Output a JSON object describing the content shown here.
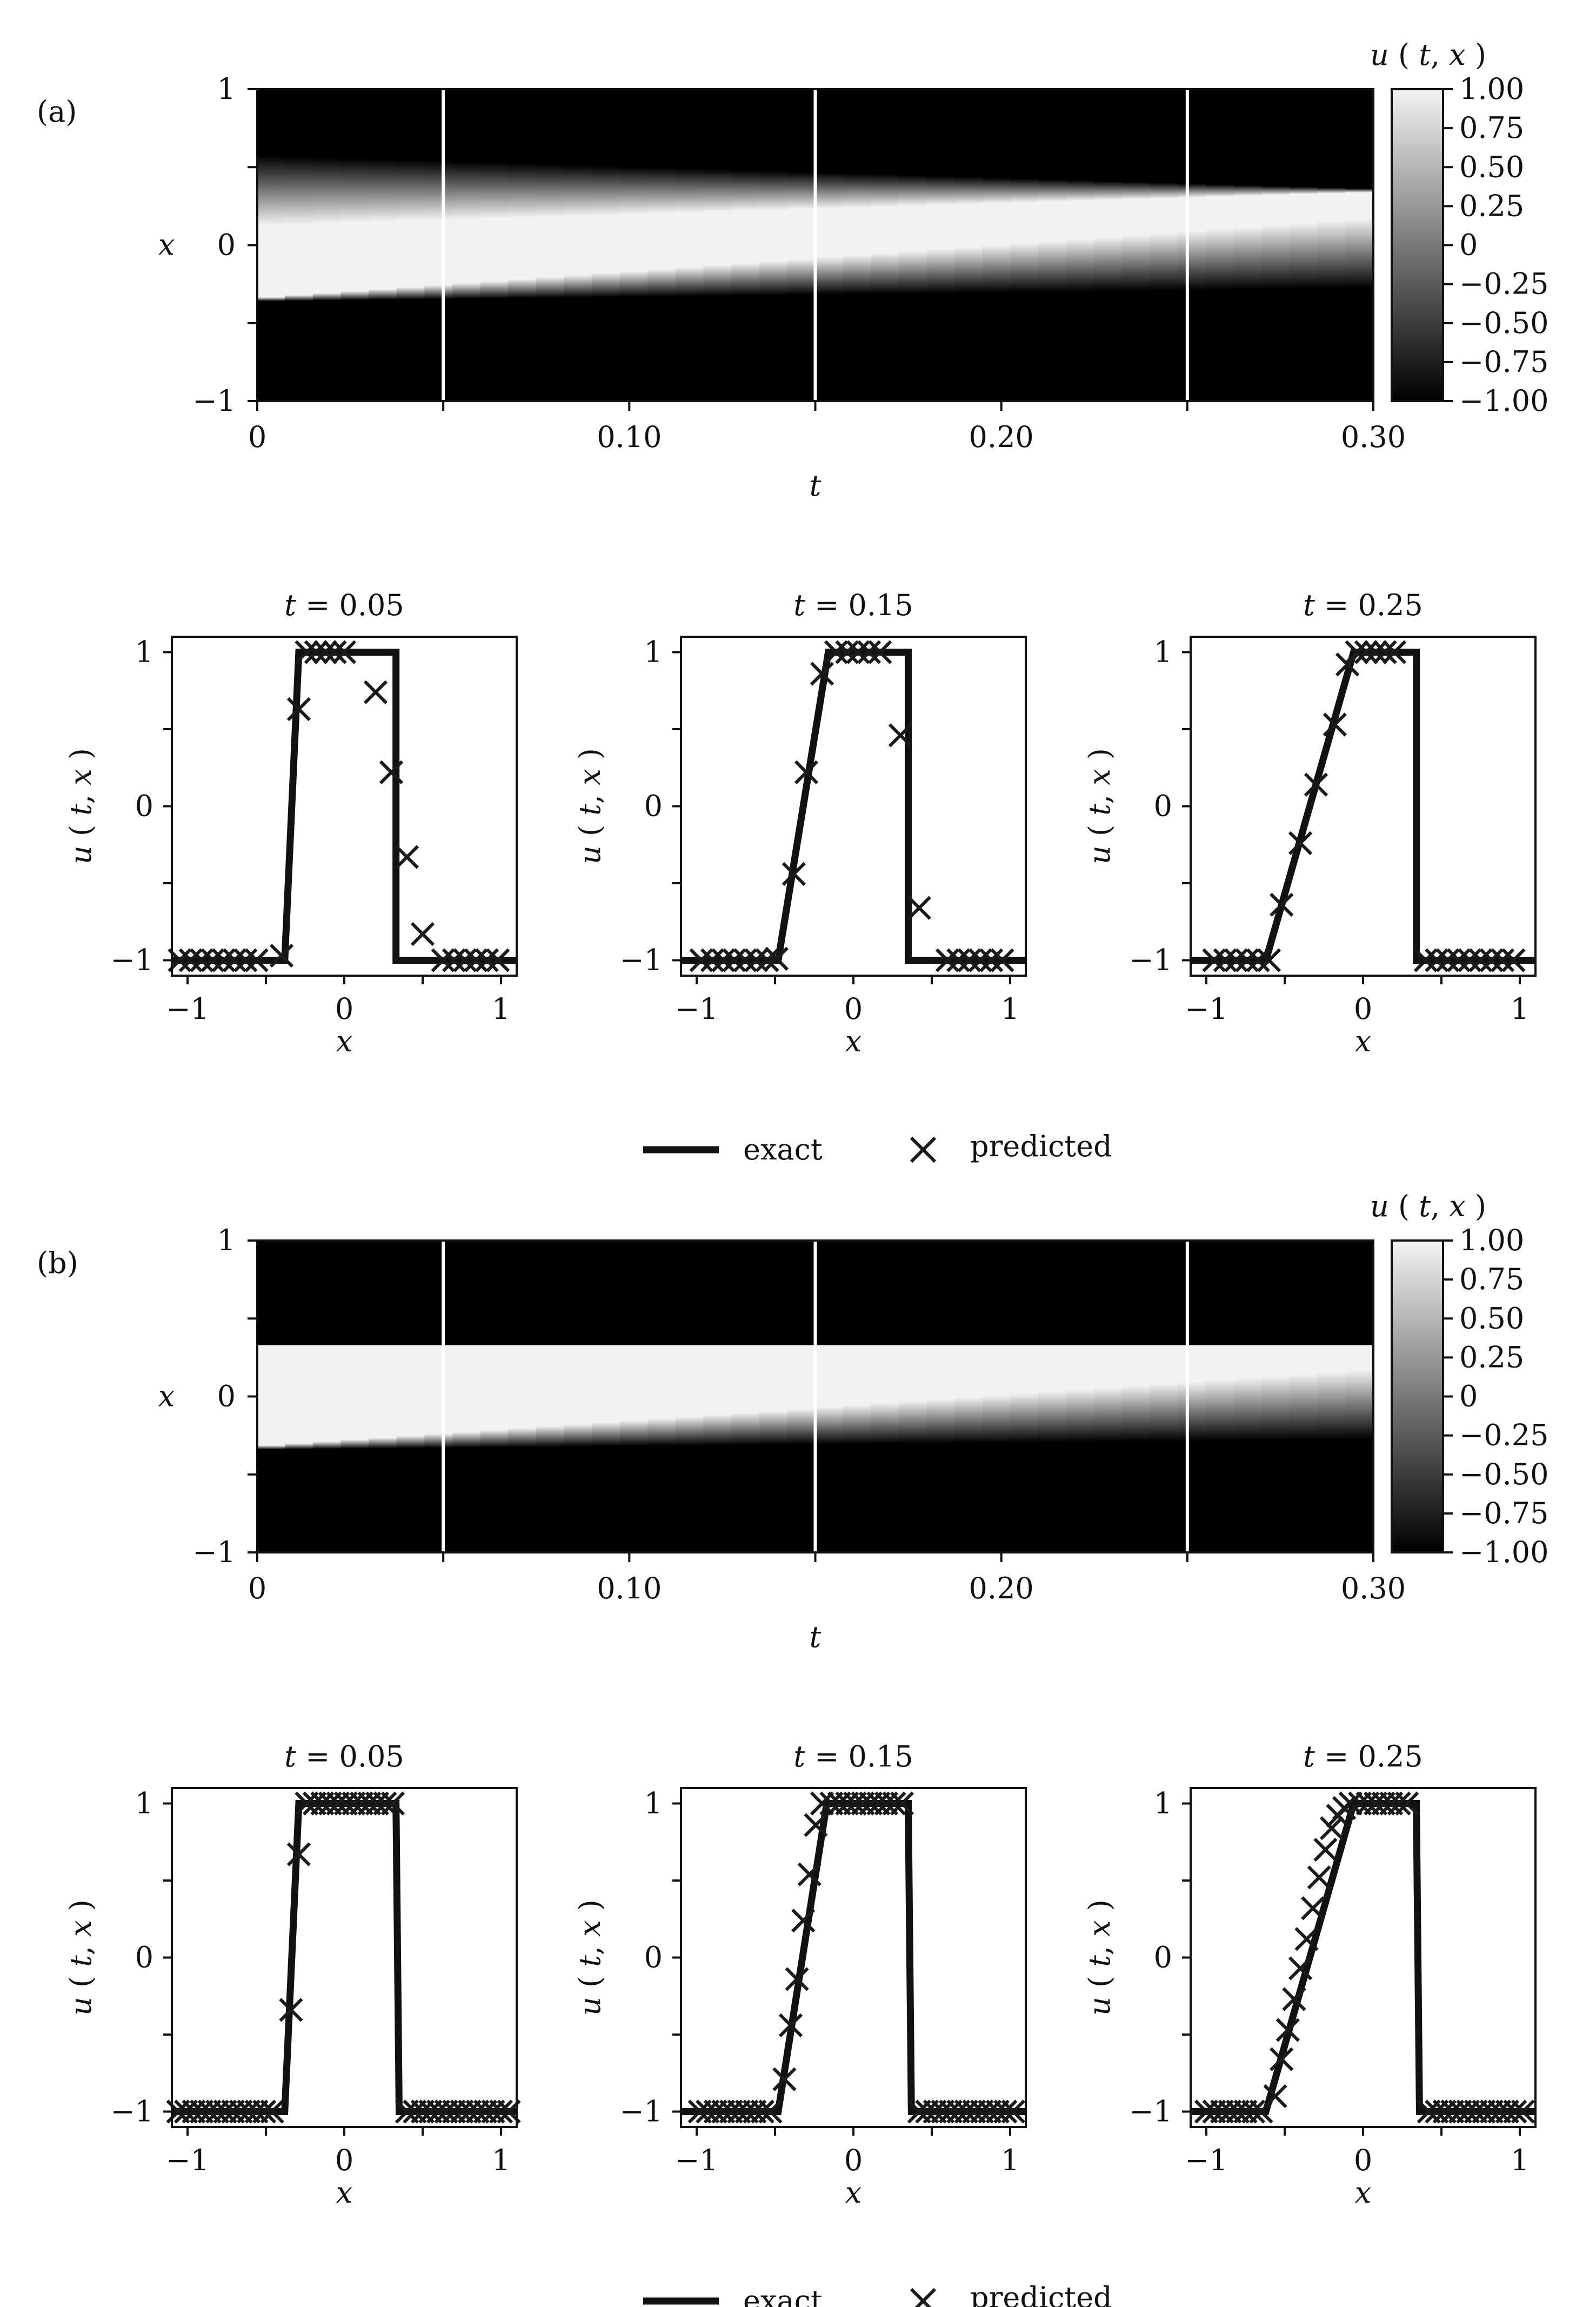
{
  "chart_data": [
    {
      "panel": "(a)",
      "type": "heatmap",
      "title": "",
      "xlabel": "t",
      "ylabel": "x",
      "xlim": [
        0,
        0.3
      ],
      "ylim": [
        -1,
        1
      ],
      "x_ticks": [
        "0",
        "0.10",
        "0.20",
        "0.30"
      ],
      "y_ticks": [
        "−1",
        "0",
        "1"
      ],
      "colorbar": {
        "label": "u ( t, x )",
        "range": [
          -1,
          1
        ],
        "ticks": [
          "1.00",
          "0.75",
          "0.50",
          "0.25",
          "0",
          "−0.25",
          "−0.50",
          "−0.75",
          "−1.00"
        ]
      },
      "colormap": [
        "#000000",
        "#f2f2f2"
      ],
      "field": {
        "upper_edge": [
          [
            0,
            0.35
          ],
          [
            0.3,
            0.35
          ]
        ],
        "upper_edge_smearing": [
          0.45,
          0.02
        ],
        "lower_edge": [
          [
            0,
            -0.35
          ],
          [
            0.3,
            -0.05
          ]
        ],
        "lower_edge_smearing": [
          0.02,
          0.45
        ]
      },
      "slice_times": [
        0.05,
        0.15,
        0.25
      ],
      "slice_line_color": "#ffffff"
    },
    {
      "panel": "(a)",
      "type": "line",
      "subplots": [
        {
          "title": "t = 0.05",
          "xlabel": "x",
          "ylabel": "u ( t, x )",
          "xlim": [
            -1.1,
            1.1
          ],
          "ylim": [
            -1.1,
            1.1
          ],
          "x_ticks": [
            "−1",
            "0",
            "1"
          ],
          "y_ticks": [
            "−1",
            "0",
            "1"
          ],
          "exact": {
            "x": [
              -1.1,
              -0.38,
              -0.29,
              0.33,
              0.33,
              1.1
            ],
            "y": [
              -1,
              -1,
              1,
              1,
              -1,
              -1
            ]
          },
          "predicted": {
            "x": [
              -1.05,
              -0.98,
              -0.91,
              -0.84,
              -0.77,
              -0.7,
              -0.63,
              -0.56,
              -0.4,
              -0.29,
              -0.24,
              -0.18,
              -0.12,
              -0.06,
              0,
              0.2,
              0.3,
              0.4,
              0.5,
              0.63,
              0.7,
              0.77,
              0.84,
              0.91,
              0.98
            ],
            "y": [
              -1,
              -1,
              -1,
              -1,
              -1,
              -1,
              -1,
              -1,
              -0.97,
              0.63,
              1,
              1,
              1,
              1,
              1,
              0.74,
              0.22,
              -0.33,
              -0.83,
              -1,
              -1,
              -1,
              -1,
              -1,
              -1
            ]
          }
        },
        {
          "title": "t = 0.15",
          "xlabel": "x",
          "ylabel": "u ( t, x )",
          "xlim": [
            -1.1,
            1.1
          ],
          "ylim": [
            -1.1,
            1.1
          ],
          "x_ticks": [
            "−1",
            "0",
            "1"
          ],
          "y_ticks": [
            "−1",
            "0",
            "1"
          ],
          "exact": {
            "x": [
              -1.1,
              -0.48,
              -0.16,
              0.35,
              0.35,
              1.1
            ],
            "y": [
              -1,
              -1,
              1,
              1,
              -1,
              -1
            ]
          },
          "predicted": {
            "x": [
              -0.97,
              -0.9,
              -0.83,
              -0.76,
              -0.69,
              -0.62,
              -0.55,
              -0.49,
              -0.38,
              -0.3,
              -0.2,
              -0.11,
              -0.04,
              0.03,
              0.1,
              0.17,
              0.3,
              0.42,
              0.6,
              0.67,
              0.74,
              0.81,
              0.88,
              0.95
            ],
            "y": [
              -1,
              -1,
              -1,
              -1,
              -1,
              -1,
              -1,
              -0.99,
              -0.44,
              0.22,
              0.86,
              1,
              1,
              1,
              1,
              1,
              0.46,
              -0.66,
              -1,
              -1,
              -1,
              -1,
              -1,
              -1
            ]
          }
        },
        {
          "title": "t = 0.25",
          "xlabel": "x",
          "ylabel": "u ( t, x )",
          "xlim": [
            -1.1,
            1.1
          ],
          "ylim": [
            -1.1,
            1.1
          ],
          "x_ticks": [
            "−1",
            "0",
            "1"
          ],
          "y_ticks": [
            "−1",
            "0",
            "1"
          ],
          "exact": {
            "x": [
              -1.1,
              -0.62,
              -0.06,
              0.34,
              0.34,
              1.1
            ],
            "y": [
              -1,
              -1,
              1,
              1,
              -1,
              -1
            ]
          },
          "predicted": {
            "x": [
              -0.95,
              -0.88,
              -0.81,
              -0.74,
              -0.67,
              -0.6,
              -0.52,
              -0.4,
              -0.3,
              -0.18,
              -0.1,
              -0.04,
              0.02,
              0.08,
              0.14,
              0.2,
              0.4,
              0.47,
              0.54,
              0.61,
              0.68,
              0.75,
              0.82,
              0.89,
              0.96
            ],
            "y": [
              -1,
              -1,
              -1,
              -1,
              -1,
              -1,
              -0.64,
              -0.24,
              0.14,
              0.53,
              0.92,
              1,
              1,
              1,
              1,
              1,
              -1,
              -1,
              -1,
              -1,
              -1,
              -1,
              -1,
              -1,
              -1
            ]
          }
        }
      ],
      "legend": {
        "placement": "bottom-center",
        "entries": [
          "exact",
          "predicted"
        ]
      }
    },
    {
      "panel": "(b)",
      "type": "heatmap",
      "title": "",
      "xlabel": "t",
      "ylabel": "x",
      "xlim": [
        0,
        0.3
      ],
      "ylim": [
        -1,
        1
      ],
      "x_ticks": [
        "0",
        "0.10",
        "0.20",
        "0.30"
      ],
      "y_ticks": [
        "−1",
        "0",
        "1"
      ],
      "colorbar": {
        "label": "u ( t, x )",
        "range": [
          -1,
          1
        ],
        "ticks": [
          "1.00",
          "0.75",
          "0.50",
          "0.25",
          "0",
          "−0.25",
          "−0.50",
          "−0.75",
          "−1.00"
        ]
      },
      "colormap": [
        "#000000",
        "#f2f2f2"
      ],
      "field": {
        "upper_edge": [
          [
            0,
            0.33
          ],
          [
            0.3,
            0.33
          ]
        ],
        "upper_edge_smearing": [
          0.0,
          0.0
        ],
        "lower_edge": [
          [
            0,
            -0.33
          ],
          [
            0.3,
            -0.05
          ]
        ],
        "lower_edge_smearing": [
          0.02,
          0.45
        ]
      },
      "slice_times": [
        0.05,
        0.15,
        0.25
      ],
      "slice_line_color": "#ffffff"
    },
    {
      "panel": "(b)",
      "type": "line",
      "subplots": [
        {
          "title": "t = 0.05",
          "xlabel": "x",
          "ylabel": "u ( t, x )",
          "xlim": [
            -1.1,
            1.1
          ],
          "ylim": [
            -1.1,
            1.1
          ],
          "x_ticks": [
            "−1",
            "0",
            "1"
          ],
          "y_ticks": [
            "−1",
            "0",
            "1"
          ],
          "exact": {
            "x": [
              -1.1,
              -0.38,
              -0.29,
              0.33,
              0.35,
              1.1
            ],
            "y": [
              -1,
              -1,
              1,
              1,
              -1,
              -1
            ]
          },
          "predicted": {
            "x": [
              -1.06,
              -1.01,
              -0.96,
              -0.91,
              -0.86,
              -0.81,
              -0.76,
              -0.71,
              -0.66,
              -0.61,
              -0.56,
              -0.51,
              -0.46,
              -0.34,
              -0.29,
              -0.24,
              -0.19,
              -0.14,
              -0.09,
              -0.04,
              0.01,
              0.06,
              0.11,
              0.16,
              0.21,
              0.26,
              0.31,
              0.4,
              0.45,
              0.5,
              0.55,
              0.6,
              0.65,
              0.7,
              0.75,
              0.8,
              0.85,
              0.9,
              0.95,
              1.0,
              1.05
            ],
            "y": [
              -1,
              -1,
              -1,
              -1,
              -1,
              -1,
              -1,
              -1,
              -1,
              -1,
              -1,
              -1,
              -1,
              -0.34,
              0.67,
              1,
              1,
              1,
              1,
              1,
              1,
              1,
              1,
              1,
              1,
              1,
              1,
              -1,
              -1,
              -1,
              -1,
              -1,
              -1,
              -1,
              -1,
              -1,
              -1,
              -1,
              -1,
              -1,
              -1
            ]
          }
        },
        {
          "title": "t = 0.15",
          "xlabel": "x",
          "ylabel": "u ( t, x )",
          "xlim": [
            -1.1,
            1.1
          ],
          "ylim": [
            -1.1,
            1.1
          ],
          "x_ticks": [
            "−1",
            "0",
            "1"
          ],
          "y_ticks": [
            "−1",
            "0",
            "1"
          ],
          "exact": {
            "x": [
              -1.1,
              -0.48,
              -0.17,
              0.35,
              0.37,
              1.1
            ],
            "y": [
              -1,
              -1,
              1,
              1,
              -1,
              -1
            ]
          },
          "predicted": {
            "x": [
              -0.98,
              -0.93,
              -0.88,
              -0.83,
              -0.78,
              -0.73,
              -0.68,
              -0.63,
              -0.58,
              -0.53,
              -0.44,
              -0.4,
              -0.36,
              -0.32,
              -0.28,
              -0.24,
              -0.2,
              -0.14,
              -0.09,
              -0.04,
              0.01,
              0.06,
              0.11,
              0.16,
              0.21,
              0.26,
              0.31,
              0.42,
              0.47,
              0.52,
              0.57,
              0.62,
              0.67,
              0.72,
              0.77,
              0.82,
              0.87,
              0.92,
              0.97,
              1.02
            ],
            "y": [
              -1,
              -1,
              -1,
              -1,
              -1,
              -1,
              -1,
              -1,
              -1,
              -1,
              -0.79,
              -0.44,
              -0.14,
              0.24,
              0.54,
              0.86,
              1,
              1,
              1,
              1,
              1,
              1,
              1,
              1,
              1,
              1,
              1,
              -1,
              -1,
              -1,
              -1,
              -1,
              -1,
              -1,
              -1,
              -1,
              -1,
              -1,
              -1,
              -1
            ]
          }
        },
        {
          "title": "t = 0.25",
          "xlabel": "x",
          "ylabel": "u ( t, x )",
          "xlim": [
            -1.1,
            1.1
          ],
          "ylim": [
            -1.1,
            1.1
          ],
          "x_ticks": [
            "−1",
            "0",
            "1"
          ],
          "y_ticks": [
            "−1",
            "0",
            "1"
          ],
          "exact": {
            "x": [
              -1.1,
              -0.62,
              -0.06,
              0.34,
              0.36,
              1.1
            ],
            "y": [
              -1,
              -1,
              1,
              1,
              -1,
              -1
            ]
          },
          "predicted": {
            "x": [
              -1.0,
              -0.95,
              -0.9,
              -0.85,
              -0.8,
              -0.75,
              -0.7,
              -0.65,
              -0.56,
              -0.52,
              -0.48,
              -0.44,
              -0.4,
              -0.36,
              -0.32,
              -0.28,
              -0.24,
              -0.2,
              -0.16,
              -0.12,
              -0.08,
              -0.02,
              0.03,
              0.08,
              0.13,
              0.18,
              0.23,
              0.28,
              0.42,
              0.47,
              0.52,
              0.57,
              0.62,
              0.67,
              0.72,
              0.77,
              0.82,
              0.87,
              0.92,
              0.97,
              1.02
            ],
            "y": [
              -1,
              -1,
              -1,
              -1,
              -1,
              -1,
              -1,
              -1,
              -0.9,
              -0.66,
              -0.47,
              -0.27,
              -0.07,
              0.12,
              0.32,
              0.52,
              0.7,
              0.84,
              0.92,
              0.97,
              1,
              1,
              1,
              1,
              1,
              1,
              1,
              1,
              -1,
              -1,
              -1,
              -1,
              -1,
              -1,
              -1,
              -1,
              -1,
              -1,
              -1,
              -1,
              -1
            ]
          }
        }
      ],
      "legend": {
        "placement": "bottom-center",
        "entries": [
          "exact",
          "predicted"
        ]
      }
    }
  ]
}
